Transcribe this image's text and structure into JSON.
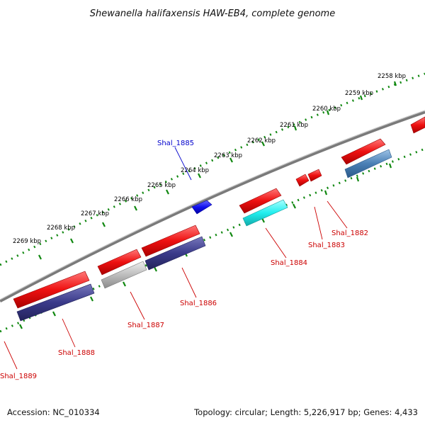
{
  "title": "Shewanella halifaxensis HAW-EB4, complete genome",
  "scale_labels": [
    "2258 kbp",
    "2259 kbp",
    "2260 kbp",
    "2261 kbp",
    "2262 kbp",
    "2263 kbp",
    "2264 kbp",
    "2265 kbp",
    "2266 kbp",
    "2267 kbp",
    "2268 kbp",
    "2269 kbp"
  ],
  "genes": [
    {
      "label": "Shal_1882",
      "color": "#cc0000"
    },
    {
      "label": "Shal_1883",
      "color": "#cc0000"
    },
    {
      "label": "Shal_1884",
      "color": "#cc0000"
    },
    {
      "label": "Shal_1885",
      "color": "#0000cc"
    },
    {
      "label": "Shal_1886",
      "color": "#cc0000"
    },
    {
      "label": "Shal_1887",
      "color": "#cc0000"
    },
    {
      "label": "Shal_1888",
      "color": "#cc0000"
    },
    {
      "label": "Shal_1889",
      "color": "#cc0000"
    }
  ],
  "colors": {
    "cds": "#ee1111",
    "blue_feature": "#1111ee",
    "navy_feature": "#3a3a8a",
    "cyan_feature": "#22eeee",
    "grey_feature": "#bdbdbd",
    "steel_feature": "#4a7fb5",
    "backbone": "#7a7a7a",
    "tick_dots": "#118811"
  },
  "footer": {
    "accession": "Accession: NC_010334",
    "summary": "Topology: circular; Length: 5,226,917 bp; Genes: 4,433"
  }
}
